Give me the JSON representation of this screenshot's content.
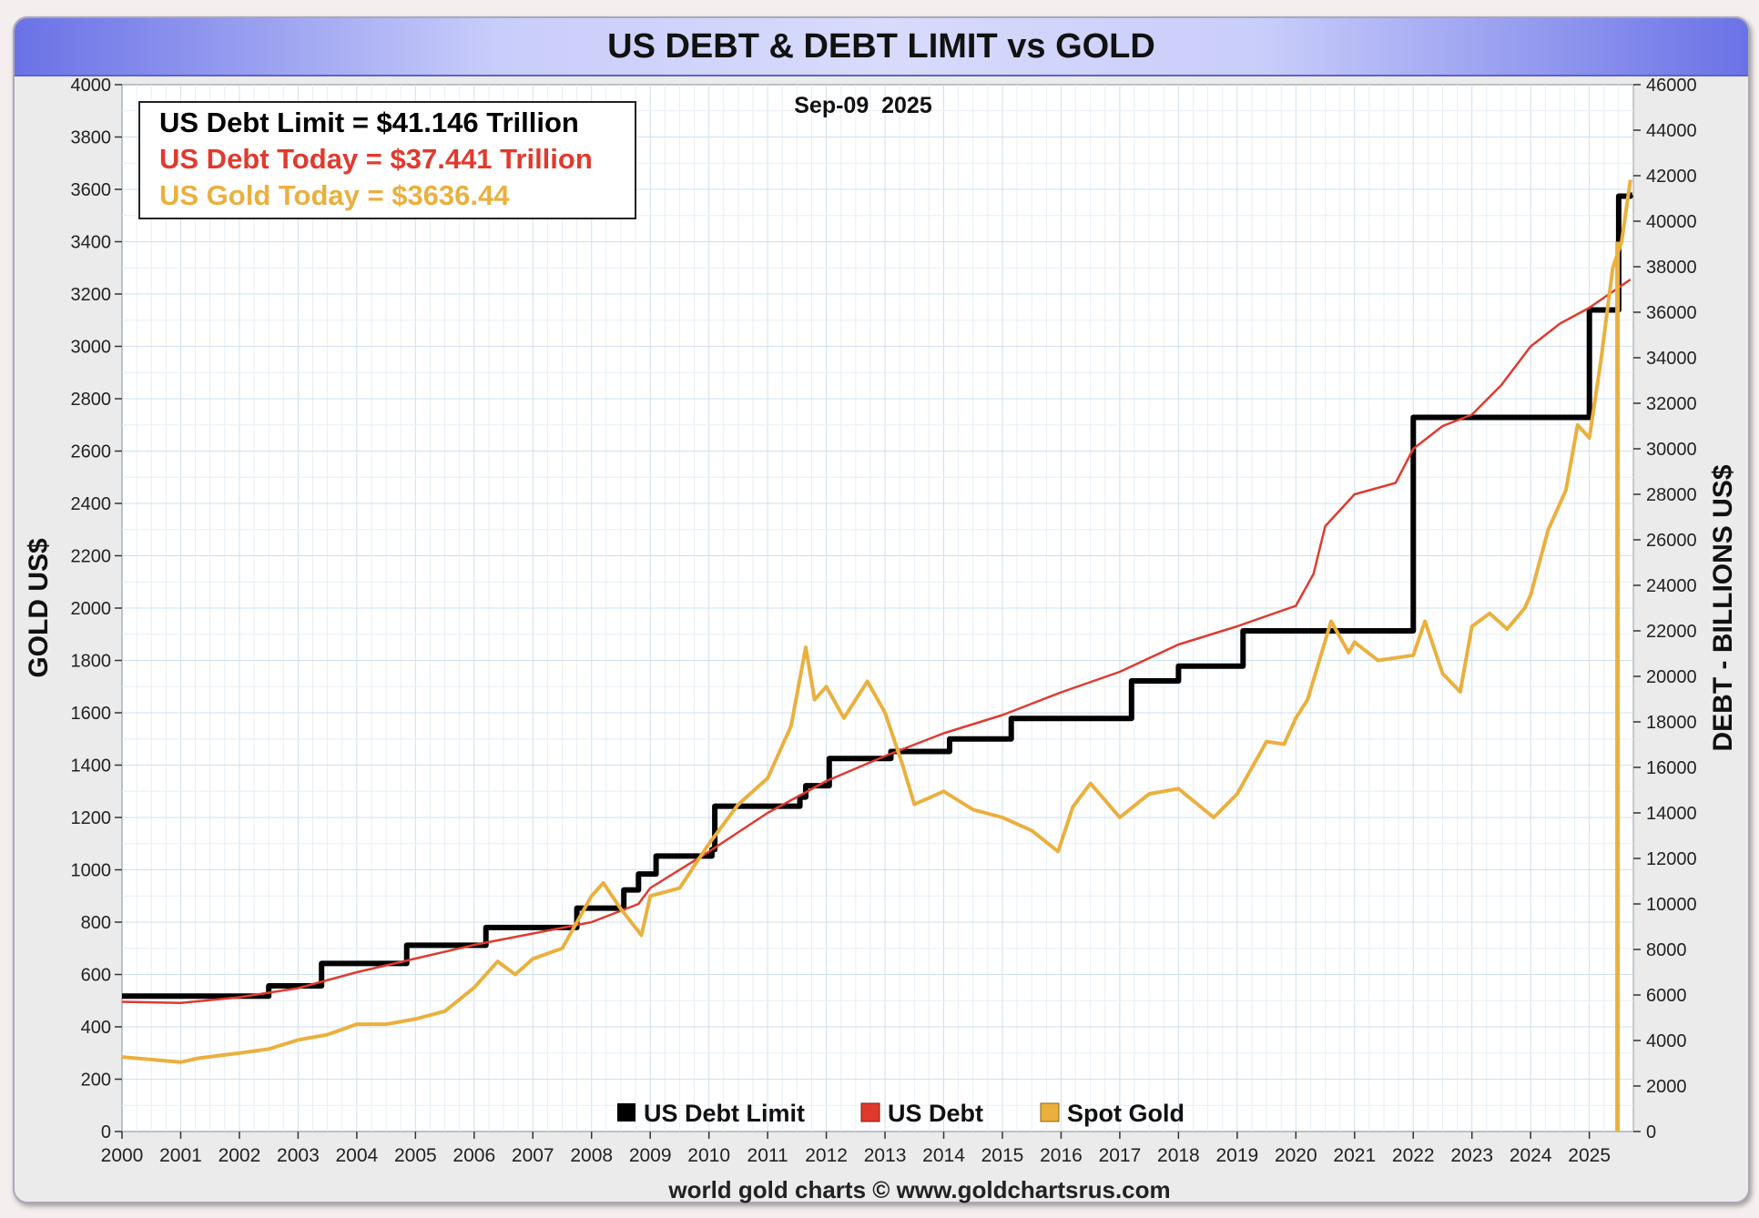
{
  "chart_data": {
    "type": "line",
    "title": "US DEBT & DEBT LIMIT vs GOLD",
    "date_label": "Sep-09  2025",
    "ylabel_left": "GOLD US$",
    "ylabel_right": "DEBT - BILLIONS US$",
    "footer": "world gold charts © www.goldchartsrus.com",
    "x_ticks": [
      "2000",
      "2001",
      "2002",
      "2003",
      "2004",
      "2005",
      "2006",
      "2007",
      "2008",
      "2009",
      "2010",
      "2011",
      "2012",
      "2013",
      "2014",
      "2015",
      "2016",
      "2017",
      "2018",
      "2019",
      "2020",
      "2021",
      "2022",
      "2023",
      "2024",
      "2025"
    ],
    "xlim": [
      2000,
      2025.75
    ],
    "ylim_left": [
      0,
      4000
    ],
    "ylim_right": [
      0,
      46000
    ],
    "left_ticks": [
      0,
      200,
      400,
      600,
      800,
      1000,
      1200,
      1400,
      1600,
      1800,
      2000,
      2200,
      2400,
      2600,
      2800,
      3000,
      3200,
      3400,
      3600,
      3800,
      4000
    ],
    "right_ticks": [
      0,
      2000,
      4000,
      6000,
      8000,
      10000,
      12000,
      14000,
      16000,
      18000,
      20000,
      22000,
      24000,
      26000,
      28000,
      30000,
      32000,
      34000,
      36000,
      38000,
      40000,
      42000,
      44000,
      46000
    ],
    "info_box": [
      {
        "text": "US Debt Limit    = $41.146 Trillion",
        "color": "#000000"
      },
      {
        "text": "US Debt Today = $37.441 Trillion",
        "color": "#e03a2e"
      },
      {
        "text": "US Gold Today = $3636.44",
        "color": "#eab03e"
      }
    ],
    "legend": [
      {
        "label": "US Debt Limit",
        "color": "#000000"
      },
      {
        "label": "US Debt",
        "color": "#e03a2e"
      },
      {
        "label": "Spot Gold",
        "color": "#eab03e"
      }
    ],
    "series": [
      {
        "name": "US Debt Limit",
        "axis": "right",
        "color": "#000000",
        "step": true,
        "x": [
          2000,
          2002.5,
          2003.4,
          2004.85,
          2006.2,
          2007.75,
          2008.55,
          2008.8,
          2009.1,
          2010.05,
          2010.1,
          2011.55,
          2011.65,
          2012.05,
          2013.1,
          2014.1,
          2015.15,
          2017.2,
          2018.0,
          2019.1,
          2022.0,
          2025.0,
          2025.5,
          2025.7
        ],
        "values": [
          5950,
          6400,
          7384,
          8184,
          8965,
          9815,
          10615,
          11315,
          12104,
          12394,
          14294,
          14694,
          15194,
          16394,
          16700,
          17250,
          18150,
          19800,
          20450,
          22000,
          31381,
          36100,
          41100,
          41146
        ]
      },
      {
        "name": "US Debt",
        "axis": "right",
        "color": "#e03a2e",
        "x": [
          2000,
          2001,
          2002,
          2003,
          2004,
          2005,
          2006,
          2007,
          2008,
          2008.8,
          2009,
          2010,
          2011,
          2012,
          2013,
          2014,
          2015,
          2016,
          2017,
          2018,
          2019,
          2020,
          2020.3,
          2020.5,
          2021,
          2021.7,
          2022,
          2022.5,
          2023,
          2023.5,
          2024,
          2024.5,
          2025,
          2025.7
        ],
        "values": [
          5700,
          5650,
          5900,
          6300,
          7000,
          7600,
          8200,
          8700,
          9200,
          10000,
          10700,
          12300,
          14000,
          15400,
          16500,
          17500,
          18300,
          19300,
          20200,
          21400,
          22200,
          23100,
          24500,
          26600,
          28000,
          28500,
          30000,
          31000,
          31500,
          32800,
          34500,
          35500,
          36200,
          37441
        ]
      },
      {
        "name": "Spot Gold",
        "axis": "left",
        "color": "#eab03e",
        "x": [
          2000,
          2001,
          2001.3,
          2002,
          2002.5,
          2003,
          2003.5,
          2004,
          2004.5,
          2005,
          2005.5,
          2006,
          2006.4,
          2006.7,
          2007,
          2007.5,
          2008,
          2008.2,
          2008.5,
          2008.85,
          2009,
          2009.5,
          2010,
          2010.5,
          2011,
          2011.4,
          2011.65,
          2011.8,
          2012,
          2012.3,
          2012.7,
          2013,
          2013.3,
          2013.5,
          2014,
          2014.5,
          2015,
          2015.5,
          2015.95,
          2016.2,
          2016.5,
          2017,
          2017.5,
          2018,
          2018.6,
          2019,
          2019.5,
          2019.8,
          2020,
          2020.2,
          2020.6,
          2020.9,
          2021,
          2021.4,
          2022,
          2022.2,
          2022.5,
          2022.8,
          2023,
          2023.3,
          2023.6,
          2023.9,
          2024,
          2024.3,
          2024.6,
          2024.8,
          2025,
          2025.2,
          2025.4,
          2025.55,
          2025.7
        ],
        "values": [
          285,
          265,
          280,
          300,
          315,
          350,
          370,
          410,
          410,
          430,
          460,
          550,
          650,
          600,
          660,
          700,
          900,
          950,
          850,
          750,
          900,
          930,
          1100,
          1250,
          1350,
          1550,
          1850,
          1650,
          1700,
          1580,
          1720,
          1600,
          1400,
          1250,
          1300,
          1230,
          1200,
          1150,
          1070,
          1240,
          1330,
          1200,
          1290,
          1310,
          1200,
          1290,
          1490,
          1480,
          1580,
          1650,
          1950,
          1830,
          1870,
          1800,
          1820,
          1950,
          1750,
          1680,
          1930,
          1980,
          1920,
          2000,
          2050,
          2300,
          2450,
          2700,
          2650,
          2950,
          3300,
          3400,
          3636.44
        ]
      }
    ]
  }
}
